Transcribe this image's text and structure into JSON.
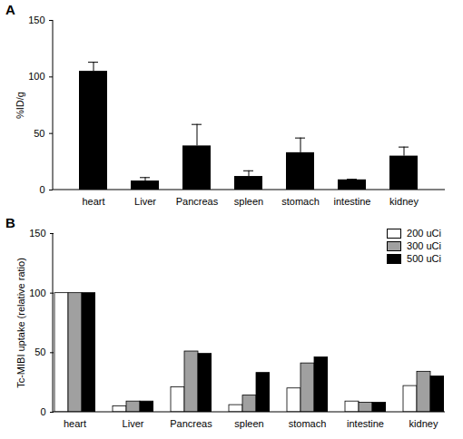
{
  "chart_data": [
    {
      "type": "bar",
      "title": "A",
      "y_label": "%ID/g",
      "categories": [
        "heart",
        "Liver",
        "Pancreas",
        "spleen",
        "stomach",
        "intestine",
        "kidney"
      ],
      "values": [
        105,
        8,
        39,
        12,
        33,
        9,
        30
      ],
      "errors": [
        8,
        3,
        19,
        5,
        13,
        0.5,
        8
      ],
      "color": "#000000",
      "ylim": [
        0,
        150
      ],
      "yticks": [
        0,
        50,
        100,
        150
      ],
      "grid": false
    },
    {
      "type": "bar",
      "title": "B",
      "y_label": "Tc-MIBI uptake (relative ratio)",
      "categories": [
        "heart",
        "Liver",
        "Pancreas",
        "spleen",
        "stomach",
        "intestine",
        "kidney"
      ],
      "series": [
        {
          "name": "200 uCi",
          "color": "#ffffff",
          "values": [
            100,
            5,
            21,
            6,
            20,
            9,
            22
          ]
        },
        {
          "name": "300 uCi",
          "color": "#a0a0a0",
          "values": [
            100,
            9,
            51,
            14,
            41,
            8,
            34
          ]
        },
        {
          "name": "500 uCi",
          "color": "#000000",
          "values": [
            100,
            9,
            49,
            33,
            46,
            8,
            30
          ]
        }
      ],
      "ylim": [
        0,
        150
      ],
      "yticks": [
        0,
        50,
        100,
        150
      ],
      "grid": false,
      "legend": "top-right"
    }
  ]
}
